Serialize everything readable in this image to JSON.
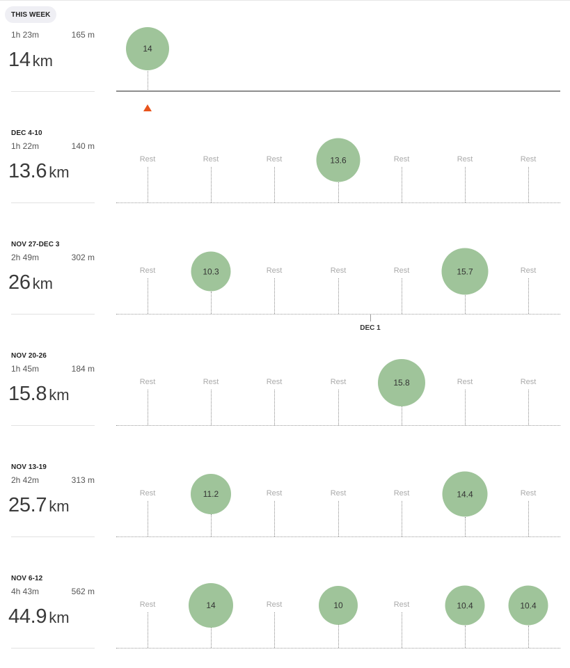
{
  "this_week": {
    "label": "THIS WEEK",
    "time": "1h 23m",
    "elevation": "165 m",
    "distance": "14",
    "unit": "km",
    "days": [
      "14"
    ]
  },
  "weeks": [
    {
      "label": "DEC 4-10",
      "time": "1h 22m",
      "elevation": "140 m",
      "distance": "13.6",
      "unit": "km",
      "days": [
        "Rest",
        "Rest",
        "Rest",
        "13.6",
        "Rest",
        "Rest",
        "Rest"
      ]
    },
    {
      "label": "NOV 27-DEC 3",
      "time": "2h 49m",
      "elevation": "302 m",
      "distance": "26",
      "unit": "km",
      "days": [
        "Rest",
        "10.3",
        "Rest",
        "Rest",
        "Rest",
        "15.7",
        "Rest"
      ]
    },
    {
      "label": "NOV 20-26",
      "time": "1h 45m",
      "elevation": "184 m",
      "distance": "15.8",
      "unit": "km",
      "days": [
        "Rest",
        "Rest",
        "Rest",
        "Rest",
        "15.8",
        "Rest",
        "Rest"
      ]
    },
    {
      "label": "NOV 13-19",
      "time": "2h 42m",
      "elevation": "313 m",
      "distance": "25.7",
      "unit": "km",
      "days": [
        "Rest",
        "11.2",
        "Rest",
        "Rest",
        "Rest",
        "14.4",
        "Rest"
      ]
    },
    {
      "label": "NOV 6-12",
      "time": "4h 43m",
      "elevation": "562 m",
      "distance": "44.9",
      "unit": "km",
      "days": [
        "Rest",
        "14",
        "Rest",
        "10",
        "Rest",
        "10.4",
        "10.4"
      ]
    }
  ],
  "month_marker": "DEC 1",
  "colors": {
    "bubble": "#9fc49a",
    "current_marker": "#e8541c",
    "rest_text": "#aaaaaa"
  }
}
